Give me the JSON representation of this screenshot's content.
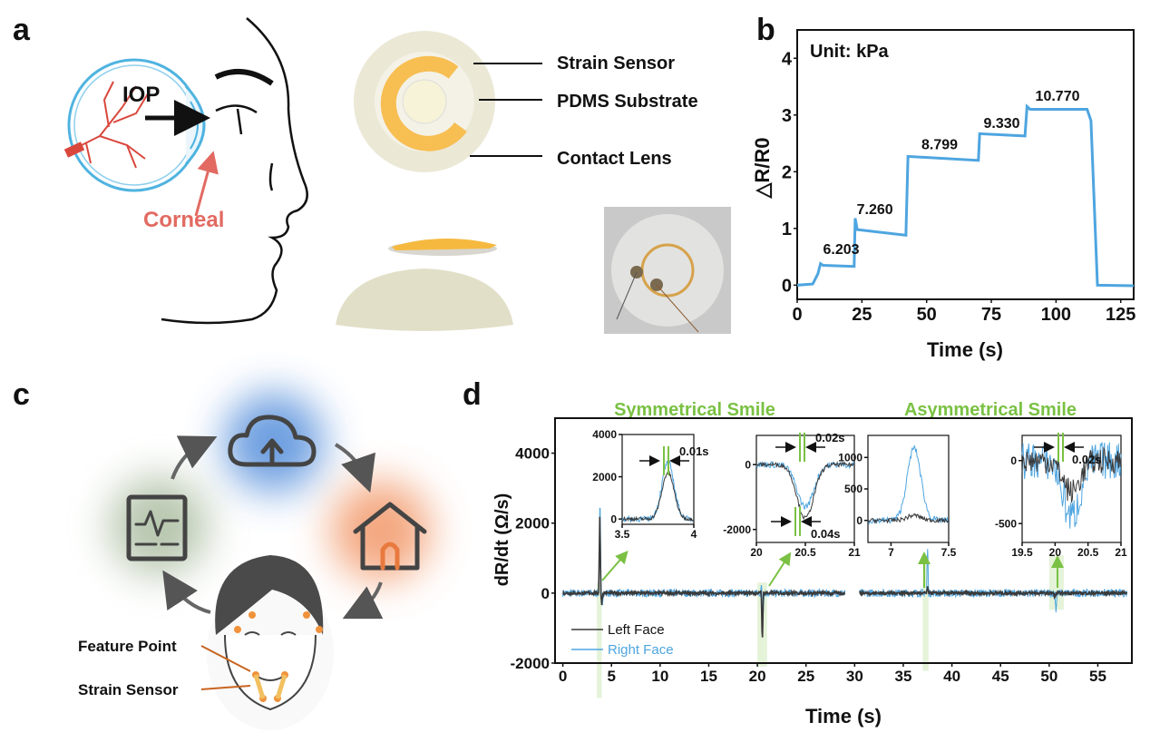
{
  "panels": {
    "a": {
      "letter": "a",
      "iop_label": "IOP",
      "corneal_label": "Corneal",
      "lens_labels": [
        "Strain Sensor",
        "PDMS Substrate",
        "Contact Lens"
      ],
      "colors": {
        "eye": "#4fb3e0",
        "vessels": "#d9473c",
        "corneal": "#e26a62",
        "sensor": "#f7be52",
        "lens": "#ebe8d6"
      }
    },
    "c": {
      "letter": "c",
      "labels": [
        "Feature Point",
        "Strain Sensor"
      ],
      "icons": [
        "cloud-upload-icon",
        "home-icon",
        "monitor-waveform-icon",
        "face-icon"
      ],
      "colors": {
        "cloud_glow": "#3d7fd6",
        "home_glow": "#f08a55",
        "monitor_glow": "#7e9a6e",
        "feature_point": "#f0923c"
      }
    }
  },
  "chart_data": [
    {
      "panel": "b",
      "type": "line",
      "annotation": "Unit: kPa",
      "xlabel": "Time (s)",
      "ylabel": "△R/R0",
      "xlim": [
        0,
        130
      ],
      "ylim": [
        -0.25,
        4.5
      ],
      "xticks": [
        0,
        25,
        50,
        75,
        100,
        125
      ],
      "yticks": [
        0,
        1,
        2,
        3,
        4
      ],
      "color": "#4ea5e0",
      "x": [
        0,
        6,
        8,
        9,
        10,
        22,
        22.4,
        23.2,
        42,
        42.8,
        70,
        70.5,
        88,
        88.8,
        90,
        112,
        113.5,
        116,
        130
      ],
      "y": [
        0,
        0.02,
        0.2,
        0.38,
        0.35,
        0.33,
        1.18,
        0.98,
        0.88,
        2.27,
        2.2,
        2.67,
        2.63,
        3.15,
        3.1,
        3.1,
        2.9,
        0,
        -0.01
      ],
      "data_labels": [
        {
          "text": "6.203",
          "x": 10,
          "y": 0.55
        },
        {
          "text": "7.260",
          "x": 23,
          "y": 1.25
        },
        {
          "text": "8.799",
          "x": 48,
          "y": 2.4
        },
        {
          "text": "9.330",
          "x": 72,
          "y": 2.77
        },
        {
          "text": "10.770",
          "x": 92,
          "y": 3.25
        }
      ],
      "grid": false
    },
    {
      "panel": "d",
      "type": "line",
      "section_titles": [
        "Symmetrical Smile",
        "Asymmetrical Smile"
      ],
      "xlabel": "Time (s)",
      "ylabel": "dR/dt (Ω/s)",
      "xlim": [
        -0.8,
        58.5
      ],
      "ylim": [
        -2000,
        5000
      ],
      "xticks": [
        0,
        5,
        10,
        15,
        20,
        25,
        30,
        35,
        40,
        45,
        50,
        55
      ],
      "yticks": [
        -2000,
        0,
        2000,
        4000
      ],
      "legend": "bottom-left",
      "segments": [
        [
          0,
          29
        ],
        [
          30.5,
          58
        ]
      ],
      "highlights": [
        [
          3.5,
          4.0
        ],
        [
          20.0,
          21.0
        ],
        [
          37.0,
          37.6
        ],
        [
          50.0,
          51.5
        ]
      ],
      "series": [
        {
          "name": "Left Face",
          "color": "#3a3a3a",
          "events": [
            [
              3.8,
              2200
            ],
            [
              4.0,
              -300
            ],
            [
              20.45,
              350
            ],
            [
              20.5,
              -1650
            ],
            [
              37.5,
              150
            ],
            [
              50.6,
              -150
            ]
          ]
        },
        {
          "name": "Right Face",
          "color": "#4ea5e0",
          "events": [
            [
              3.82,
              2800
            ],
            [
              4.05,
              -300
            ],
            [
              20.45,
              250
            ],
            [
              20.55,
              -900
            ],
            [
              37.5,
              1300
            ],
            [
              50.7,
              -500
            ]
          ]
        }
      ],
      "insets": [
        {
          "xlim": [
            3.5,
            4
          ],
          "ylim": [
            -250,
            4000
          ],
          "xticks": [
            3.5,
            4
          ],
          "yticks": [
            0,
            2000,
            4000
          ],
          "annotations": [
            "0.01s"
          ]
        },
        {
          "xlim": [
            20,
            21
          ],
          "ylim": [
            -2400,
            900
          ],
          "xticks": [
            20,
            20.5,
            21
          ],
          "yticks": [
            -2000,
            0
          ],
          "annotations": [
            "0.02s",
            "0.04s"
          ]
        },
        {
          "xlim": [
            6.8,
            7.5
          ],
          "ylim": [
            -350,
            1350
          ],
          "xticks": [
            7,
            7.5
          ],
          "yticks": [
            0,
            500,
            1000
          ],
          "annotations": []
        },
        {
          "xlim": [
            19.5,
            21
          ],
          "ylim": [
            -650,
            200
          ],
          "xticks": [
            19.5,
            20,
            20.5,
            21
          ],
          "yticks": [
            -500,
            0
          ],
          "annotations": [
            "0.02s"
          ]
        }
      ]
    }
  ],
  "panel_letters": {
    "b": "b",
    "d": "d"
  }
}
